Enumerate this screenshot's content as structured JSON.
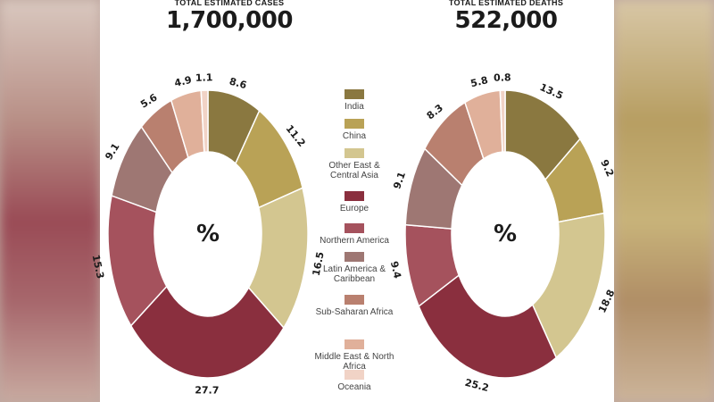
{
  "headlines": {
    "cases": {
      "label": "TOTAL ESTIMATED CASES",
      "value": "1,700,000"
    },
    "deaths": {
      "label": "TOTAL ESTIMATED DEATHS",
      "value": "522,000"
    }
  },
  "center_symbol": "%",
  "colors": {
    "India": "#8a7840",
    "China": "#b9a256",
    "Other East & Central Asia": "#d3c690",
    "Europe": "#8a2f3e",
    "Northern America": "#a5525d",
    "Latin America & Caribbean": "#9e7773",
    "Sub-Saharan Africa": "#b9806f",
    "Middle East & North Africa": "#e0b09a",
    "Oceania": "#f1d3c6"
  },
  "legend": [
    {
      "label": "India",
      "color": "#8a7840"
    },
    {
      "label": "China",
      "color": "#b9a256"
    },
    {
      "label": "Other East & Central Asia",
      "color": "#d3c690"
    },
    {
      "label": "Europe",
      "color": "#8a2f3e"
    },
    {
      "label": "Northern America",
      "color": "#a5525d"
    },
    {
      "label": "Latin America & Caribbean",
      "color": "#9e7773"
    },
    {
      "label": "Sub-Saharan Africa",
      "color": "#b9806f"
    },
    {
      "label": "Middle East & North Africa",
      "color": "#e0b09a"
    },
    {
      "label": "Oceania",
      "color": "#f1d3c6"
    }
  ],
  "chart_data": [
    {
      "type": "pie",
      "title": "TOTAL ESTIMATED CASES",
      "subtitle": "1,700,000",
      "center_label": "%",
      "categories": [
        "India",
        "China",
        "Other East & Central Asia",
        "Europe",
        "Northern America",
        "Latin America & Caribbean",
        "Sub-Saharan Africa",
        "Middle East & North Africa",
        "Oceania"
      ],
      "values": [
        8.6,
        11.2,
        16.5,
        27.7,
        15.3,
        9.1,
        5.6,
        4.9,
        1.1
      ],
      "value_labels": [
        "8.6",
        "11.2",
        "16.5",
        "27.7",
        "15.3",
        "9.1",
        "5.6",
        "4.9",
        "1.1"
      ]
    },
    {
      "type": "pie",
      "title": "TOTAL ESTIMATED DEATHS",
      "subtitle": "522,000",
      "center_label": "%",
      "categories": [
        "India",
        "China",
        "Other East & Central Asia",
        "Europe",
        "Northern America",
        "Latin America & Caribbean",
        "Sub-Saharan Africa",
        "Middle East & North Africa",
        "Oceania"
      ],
      "values": [
        13.5,
        9.2,
        18.8,
        25.2,
        9.4,
        9.1,
        8.3,
        5.8,
        0.8
      ],
      "value_labels": [
        "13.5",
        "9.2",
        "18.8",
        "25.2",
        "9.4",
        "9.1",
        "8.3",
        "5.8",
        "0.8"
      ]
    }
  ]
}
